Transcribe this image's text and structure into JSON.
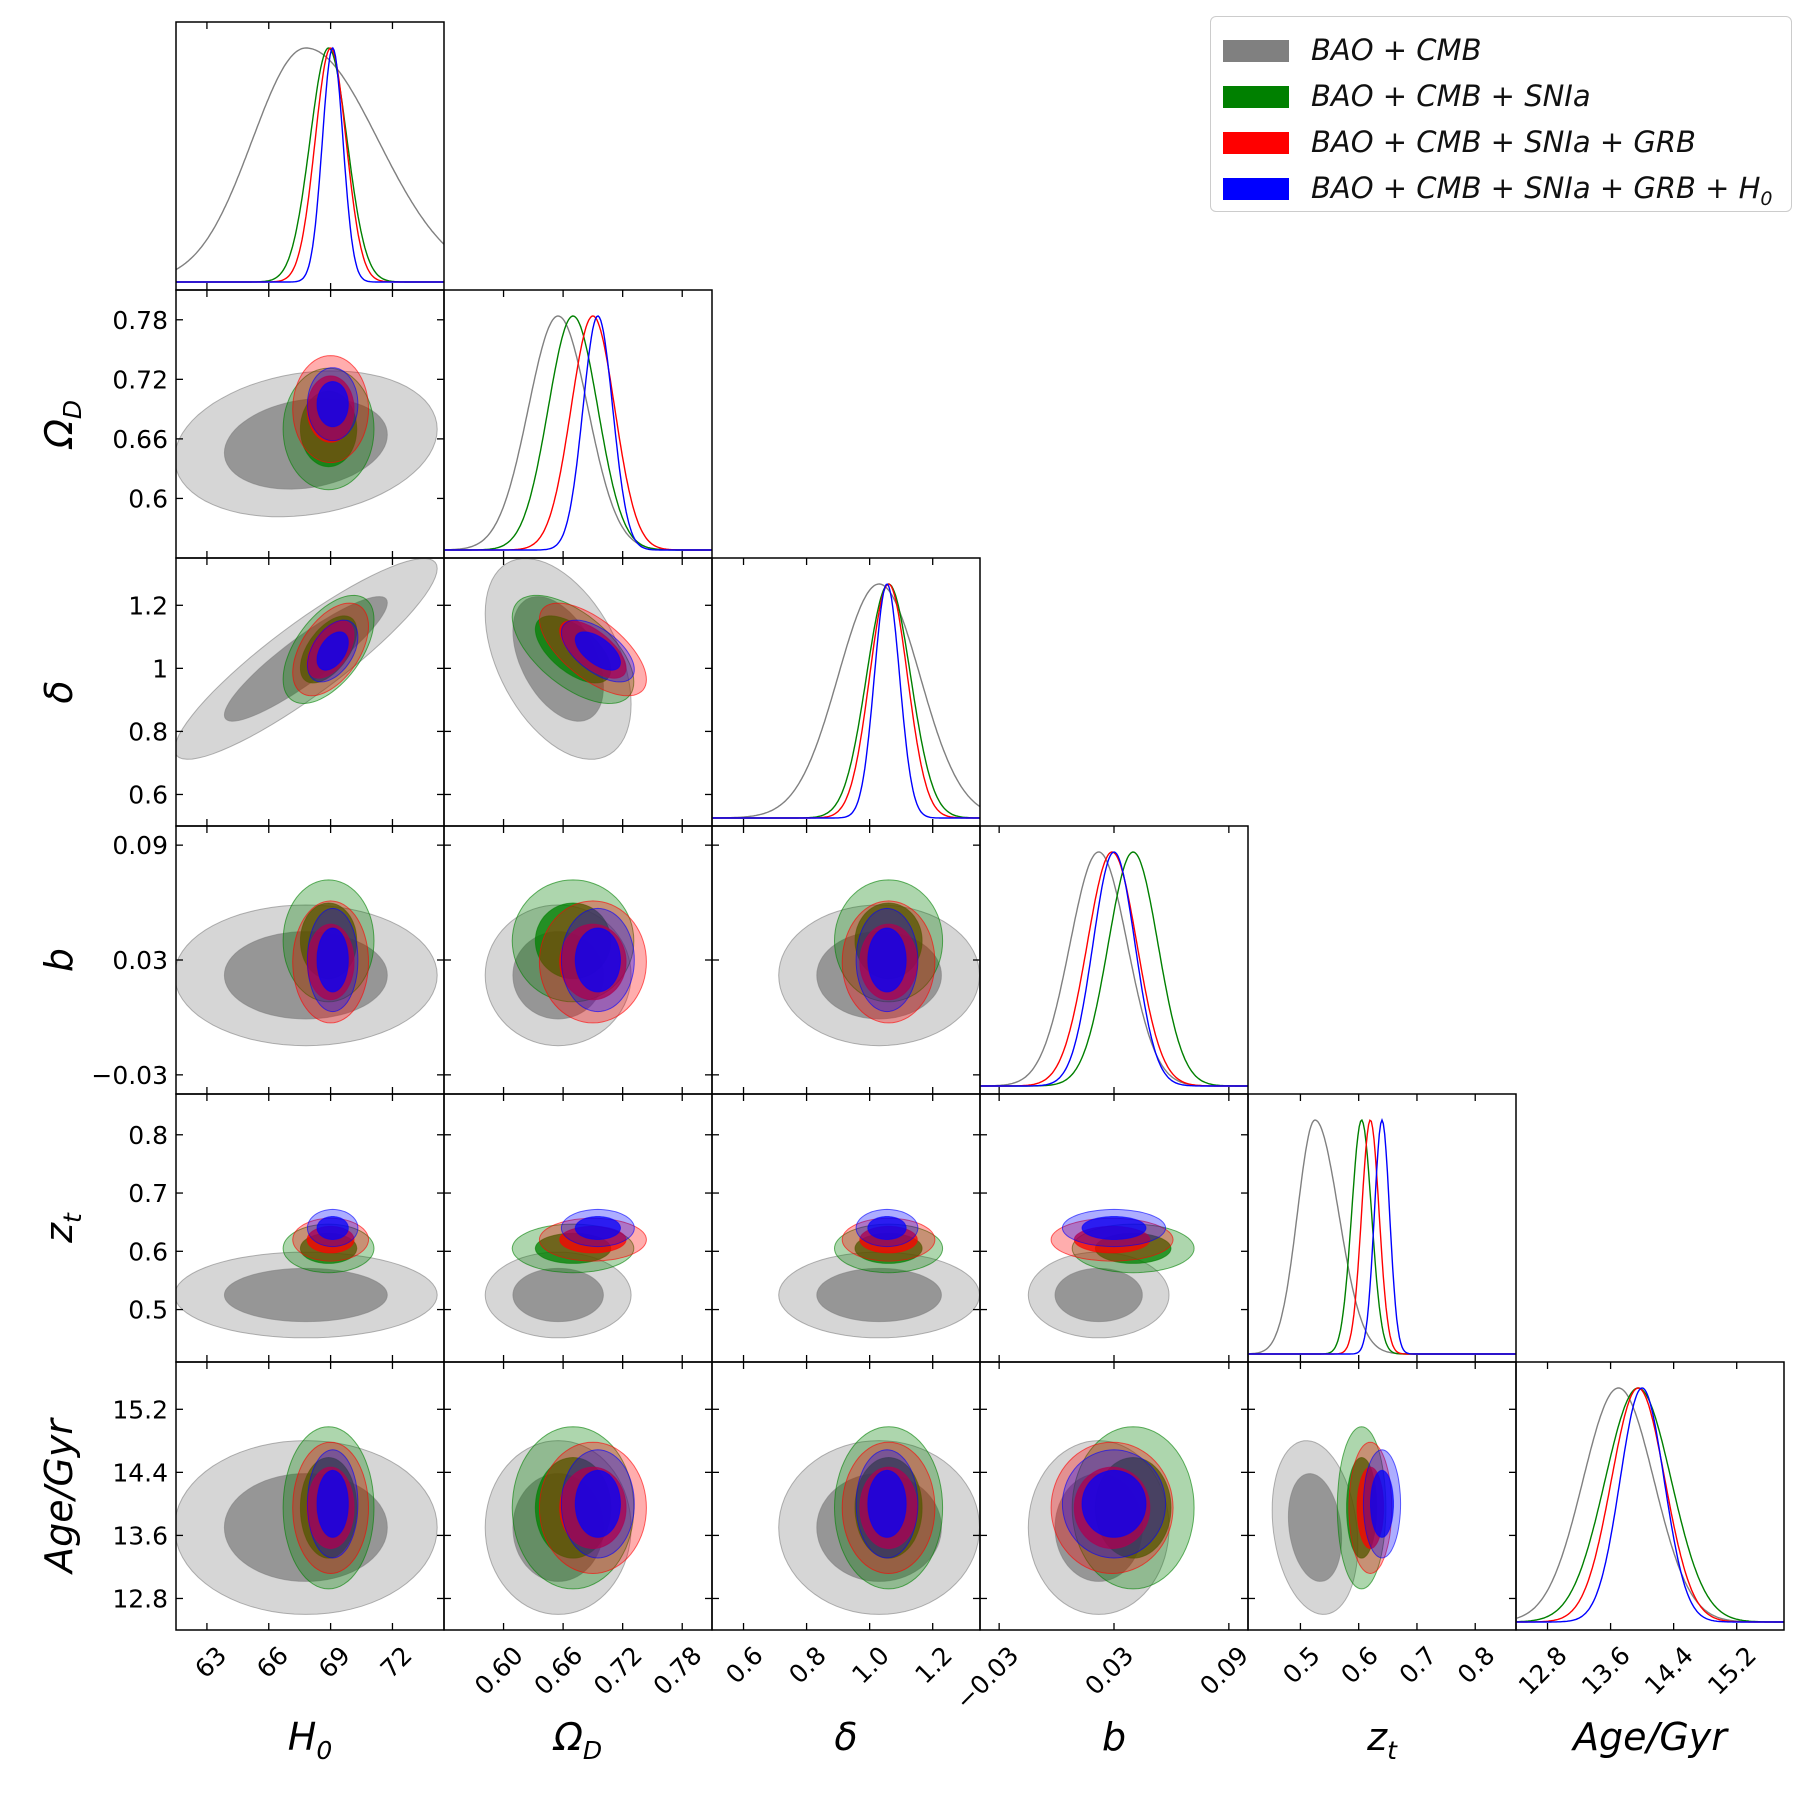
{
  "legend": {
    "entries": [
      {
        "label": "BAO + CMB",
        "color": "#808080"
      },
      {
        "label": "BAO + CMB + SNIa",
        "color": "#008000"
      },
      {
        "label": "BAO + CMB + SNIa + GRB",
        "color": "#ff0000"
      },
      {
        "label": "BAO + CMB + SNIa + GRB + H",
        "sub": "0",
        "color": "#0000ff"
      }
    ]
  },
  "chart_data": {
    "type": "corner",
    "title": "",
    "parameters": [
      {
        "label": "H",
        "sub": "0",
        "range": [
          61.5,
          74.5
        ],
        "ticks": [
          63,
          66,
          69,
          72
        ],
        "ticklabels": [
          "63",
          "66",
          "69",
          "72"
        ]
      },
      {
        "label": "Ω",
        "sub": "D",
        "range": [
          0.54,
          0.81
        ],
        "ticks": [
          0.6,
          0.66,
          0.72,
          0.78
        ],
        "ticklabels": [
          "0.60",
          "0.66",
          "0.72",
          "0.78"
        ],
        "yticklabels": [
          "0.6",
          "0.66",
          "0.72",
          "0.78"
        ]
      },
      {
        "label": "δ",
        "sub": "",
        "range": [
          0.5,
          1.35
        ],
        "ticks": [
          0.6,
          0.8,
          1.0,
          1.2
        ],
        "ticklabels": [
          "0.6",
          "0.8",
          "1.0",
          "1.2"
        ],
        "yticklabels": [
          "0.6",
          "0.8",
          "1",
          "1.2"
        ]
      },
      {
        "label": "b",
        "sub": "",
        "range": [
          -0.04,
          0.1
        ],
        "ticks": [
          -0.03,
          0.03,
          0.09
        ],
        "ticklabels": [
          "−0.03",
          "0.03",
          "0.09"
        ]
      },
      {
        "label": "z",
        "sub": "t",
        "range": [
          0.41,
          0.87
        ],
        "ticks": [
          0.5,
          0.6,
          0.7,
          0.8
        ],
        "ticklabels": [
          "0.5",
          "0.6",
          "0.7",
          "0.8"
        ]
      },
      {
        "label": "Age/Gyr",
        "sub": "",
        "range": [
          12.4,
          15.8
        ],
        "ticks": [
          12.8,
          13.6,
          14.4,
          15.2
        ],
        "ticklabels": [
          "12.8",
          "13.6",
          "14.4",
          "15.2"
        ]
      }
    ],
    "series": [
      {
        "name": "BAO + CMB",
        "color": "#808080",
        "mean": [
          67.8,
          0.655,
          1.03,
          0.022,
          0.525,
          13.7
        ],
        "sd": [
          2.6,
          0.03,
          0.13,
          0.015,
          0.03,
          0.45
        ],
        "corr": [
          [
            0,
            1,
            0.2
          ],
          [
            0,
            2,
            0.9
          ],
          [
            1,
            2,
            -0.45
          ],
          [
            4,
            5,
            -0.2
          ]
        ]
      },
      {
        "name": "BAO + CMB + SNIa",
        "color": "#008000",
        "mean": [
          68.9,
          0.67,
          1.06,
          0.04,
          0.605,
          13.95
        ],
        "sd": [
          0.9,
          0.025,
          0.07,
          0.013,
          0.017,
          0.42
        ],
        "corr": [
          [
            0,
            2,
            0.55
          ],
          [
            1,
            2,
            -0.6
          ]
        ]
      },
      {
        "name": "BAO + CMB + SNIa + GRB",
        "color": "#ff0000",
        "mean": [
          69.0,
          0.69,
          1.06,
          0.029,
          0.62,
          13.95
        ],
        "sd": [
          0.75,
          0.022,
          0.06,
          0.013,
          0.015,
          0.34
        ],
        "corr": [
          [
            0,
            2,
            0.5
          ],
          [
            1,
            2,
            -0.65
          ]
        ]
      },
      {
        "name": "BAO + CMB + SNIa + GRB + H0",
        "color": "#0000ff",
        "mean": [
          69.1,
          0.695,
          1.055,
          0.03,
          0.64,
          14.0
        ],
        "sd": [
          0.5,
          0.015,
          0.04,
          0.011,
          0.013,
          0.28
        ],
        "corr": [
          [
            0,
            2,
            0.45
          ],
          [
            1,
            2,
            -0.6
          ]
        ]
      }
    ]
  }
}
